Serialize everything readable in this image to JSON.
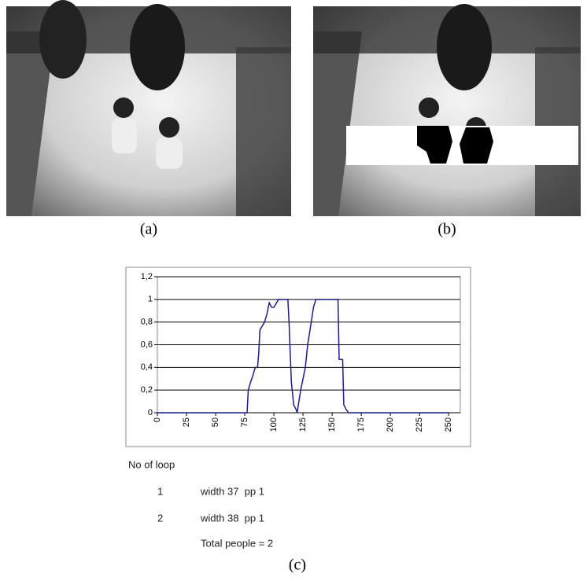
{
  "panels": [
    {
      "caption": "(a)"
    },
    {
      "caption": "(b)"
    }
  ],
  "chart_data": {
    "type": "line",
    "color": "#1c1c8c",
    "x": [
      0,
      77,
      78,
      80,
      82,
      84,
      86,
      87,
      88,
      92,
      94,
      96,
      98,
      100,
      104,
      106,
      112,
      113,
      114,
      115,
      117,
      119,
      120,
      121,
      123,
      127,
      129,
      131,
      134,
      136,
      155,
      156,
      159,
      160,
      162,
      164,
      166,
      250
    ],
    "values": [
      0,
      0,
      0.2,
      0.27,
      0.33,
      0.4,
      0.4,
      0.53,
      0.73,
      0.8,
      0.87,
      0.97,
      0.93,
      0.93,
      1,
      1,
      1,
      0.8,
      0.53,
      0.27,
      0.07,
      0.03,
      0,
      0.07,
      0.2,
      0.4,
      0.6,
      0.73,
      0.93,
      1,
      1,
      0.47,
      0.47,
      0.07,
      0.03,
      0,
      0,
      0
    ],
    "xlim": [
      0,
      260
    ],
    "xticks": [
      0,
      25,
      50,
      75,
      100,
      125,
      150,
      175,
      200,
      225,
      250
    ],
    "ylim": [
      0,
      1.2
    ],
    "yticks": [
      0,
      {
        "value": 0.2,
        "label": "0,2"
      },
      {
        "value": 0.4,
        "label": "0,4"
      },
      {
        "value": 0.6,
        "label": "0,6"
      },
      {
        "value": 0.8,
        "label": "0,8"
      },
      1,
      {
        "value": 1.2,
        "label": "1,2"
      }
    ],
    "grid": true
  },
  "output": {
    "heading": "No of loop",
    "rows": [
      [
        "1",
        "width 37  pp 1"
      ],
      [
        "2",
        "width 38  pp 1"
      ]
    ],
    "total": "Total people = 2",
    "caption": "(c)"
  }
}
